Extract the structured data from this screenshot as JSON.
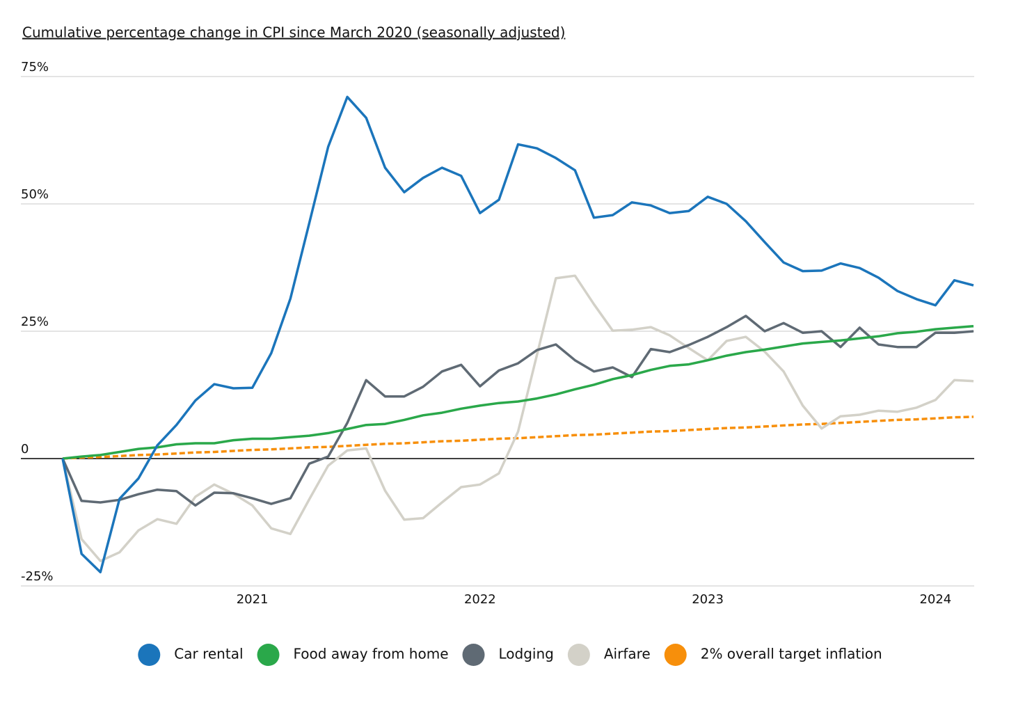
{
  "chart_data": {
    "type": "line",
    "title": "Cumulative percentage change in CPI since March 2020 (seasonally adjusted)",
    "x": [
      2020.167,
      2020.25,
      2020.333,
      2020.417,
      2020.5,
      2020.583,
      2020.667,
      2020.75,
      2020.833,
      2020.917,
      2021,
      2021.083,
      2021.167,
      2021.25,
      2021.333,
      2021.417,
      2021.5,
      2021.583,
      2021.667,
      2021.75,
      2021.833,
      2021.917,
      2022,
      2022.083,
      2022.167,
      2022.25,
      2022.333,
      2022.417,
      2022.5,
      2022.583,
      2022.667,
      2022.75,
      2022.833,
      2022.917,
      2023,
      2023.083,
      2023.167,
      2023.25,
      2023.333,
      2023.417,
      2023.5,
      2023.583,
      2023.667,
      2023.75,
      2023.833,
      2023.917,
      2024,
      2024.083,
      2024.167
    ],
    "xlim": [
      2020.167,
      2024.167
    ],
    "xticks": [
      2021,
      2022,
      2023,
      2024
    ],
    "ylim": [
      -25,
      75
    ],
    "yticks": [
      {
        "value": -25,
        "label": "-25%"
      },
      0,
      {
        "value": 25,
        "label": "25%"
      },
      {
        "value": 50,
        "label": "50%"
      },
      {
        "value": 75,
        "label": "75%"
      }
    ],
    "grid": true,
    "legend": "bottom",
    "series": [
      {
        "name": "Car rental",
        "color": "#1b75bb",
        "values": [
          0,
          -18.7,
          -22.3,
          -7.9,
          -3.9,
          2.6,
          6.6,
          11.4,
          14.6,
          13.8,
          13.9,
          20.7,
          31.4,
          46.2,
          61.2,
          71.0,
          66.9,
          57.1,
          52.3,
          55.1,
          57.1,
          55.5,
          48.2,
          50.8,
          61.7,
          60.9,
          59.0,
          56.6,
          47.3,
          47.8,
          50.3,
          49.7,
          48.2,
          48.6,
          51.4,
          50.0,
          46.6,
          42.5,
          38.5,
          36.8,
          36.9,
          38.3,
          37.4,
          35.5,
          32.9,
          31.3,
          30.1,
          35.0,
          34.0
        ]
      },
      {
        "name": "Food away from home",
        "color": "#2aa84a",
        "values": [
          0,
          0.4,
          0.7,
          1.3,
          1.9,
          2.2,
          2.8,
          3.0,
          3.0,
          3.6,
          3.9,
          3.9,
          4.2,
          4.5,
          5.0,
          5.8,
          6.6,
          6.8,
          7.6,
          8.5,
          9.0,
          9.8,
          10.4,
          10.9,
          11.2,
          11.8,
          12.6,
          13.6,
          14.5,
          15.6,
          16.4,
          17.4,
          18.2,
          18.5,
          19.3,
          20.2,
          20.9,
          21.4,
          22.0,
          22.6,
          22.9,
          23.2,
          23.6,
          24.0,
          24.6,
          24.9,
          25.4,
          25.7,
          26.0
        ]
      },
      {
        "name": "Lodging",
        "color": "#5f6a74",
        "values": [
          0,
          -8.3,
          -8.6,
          -8.1,
          -7.0,
          -6.1,
          -6.4,
          -9.2,
          -6.7,
          -6.8,
          -7.8,
          -8.9,
          -7.8,
          -1.0,
          0.4,
          7.0,
          15.4,
          12.2,
          12.2,
          14.1,
          17.1,
          18.4,
          14.2,
          17.3,
          18.7,
          21.3,
          22.4,
          19.3,
          17.1,
          17.9,
          16.0,
          21.5,
          20.9,
          22.3,
          23.9,
          25.8,
          28.0,
          25.0,
          26.6,
          24.7,
          25.0,
          21.9,
          25.7,
          22.4,
          21.9,
          21.9,
          24.7,
          24.7,
          25.0
        ]
      },
      {
        "name": "Airfare",
        "color": "#d3d1c8",
        "values": [
          0,
          -15.8,
          -20.1,
          -18.4,
          -14.1,
          -11.9,
          -12.8,
          -7.5,
          -5.1,
          -6.9,
          -9.2,
          -13.7,
          -14.8,
          -8.0,
          -1.4,
          1.6,
          2.0,
          -6.3,
          -12.0,
          -11.7,
          -8.6,
          -5.6,
          -5.1,
          -2.9,
          5.3,
          20.4,
          35.4,
          35.9,
          30.3,
          25.1,
          25.3,
          25.8,
          24.2,
          21.7,
          19.3,
          23.1,
          23.9,
          21.0,
          17.1,
          10.4,
          5.9,
          8.3,
          8.6,
          9.4,
          9.2,
          10.0,
          11.5,
          15.4,
          15.2
        ]
      },
      {
        "name": "2% overall target inflation",
        "color": "#f78f0b",
        "dashed": true,
        "values": [
          0,
          0.2,
          0.3,
          0.5,
          0.7,
          0.8,
          1.0,
          1.2,
          1.3,
          1.5,
          1.7,
          1.8,
          2.0,
          2.2,
          2.3,
          2.5,
          2.7,
          2.9,
          3.0,
          3.2,
          3.4,
          3.5,
          3.7,
          3.9,
          4.0,
          4.2,
          4.4,
          4.6,
          4.7,
          4.9,
          5.1,
          5.3,
          5.4,
          5.6,
          5.8,
          6.0,
          6.1,
          6.3,
          6.5,
          6.7,
          6.8,
          7.0,
          7.2,
          7.4,
          7.6,
          7.7,
          7.9,
          8.1,
          8.2
        ]
      }
    ]
  }
}
